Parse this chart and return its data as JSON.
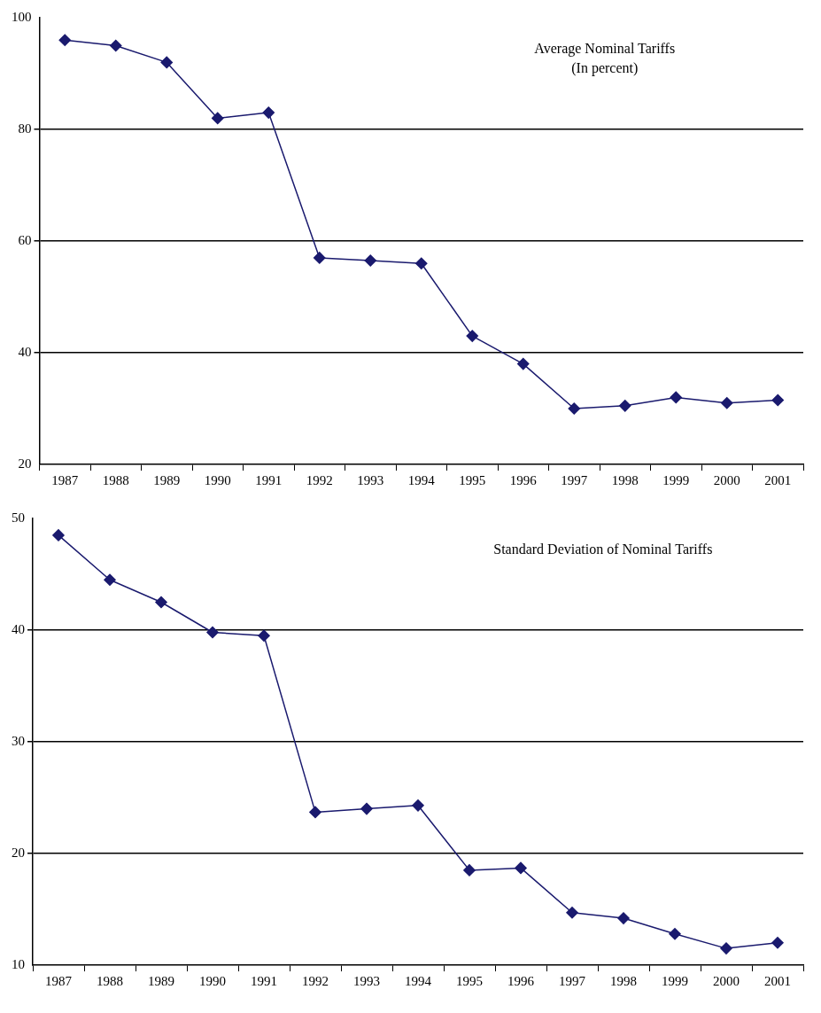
{
  "chart_data": [
    {
      "type": "line",
      "title": "Average Nominal Tariffs",
      "subtitle": "(In percent)",
      "categories": [
        "1987",
        "1988",
        "1989",
        "1990",
        "1991",
        "1992",
        "1993",
        "1994",
        "1995",
        "1996",
        "1997",
        "1998",
        "1999",
        "2000",
        "2001"
      ],
      "series": [
        {
          "color": "#1a1a6e",
          "values": [
            96,
            95,
            92,
            82,
            83,
            57,
            56.5,
            56,
            43,
            38,
            30,
            30.5,
            32,
            31,
            31.5
          ]
        }
      ],
      "ylim": [
        20,
        100
      ],
      "yticks": [
        20,
        40,
        60,
        80,
        100
      ],
      "grid": "y",
      "legend": false,
      "marker": "diamond",
      "line_style": "solid"
    },
    {
      "type": "line",
      "title": "Standard Deviation of Nominal Tariffs",
      "categories": [
        "1987",
        "1988",
        "1989",
        "1990",
        "1991",
        "1992",
        "1993",
        "1994",
        "1995",
        "1996",
        "1997",
        "1998",
        "1999",
        "2000",
        "2001"
      ],
      "series": [
        {
          "color": "#1a1a6e",
          "values": [
            48.5,
            44.5,
            42.5,
            39.8,
            39.5,
            23.7,
            24,
            24.3,
            18.5,
            18.7,
            14.7,
            14.2,
            12.8,
            11.5,
            12
          ]
        }
      ],
      "ylim": [
        10,
        50
      ],
      "yticks": [
        10,
        20,
        30,
        40,
        50
      ],
      "grid": "y",
      "legend": false,
      "marker": "diamond",
      "line_style": "solid"
    }
  ]
}
